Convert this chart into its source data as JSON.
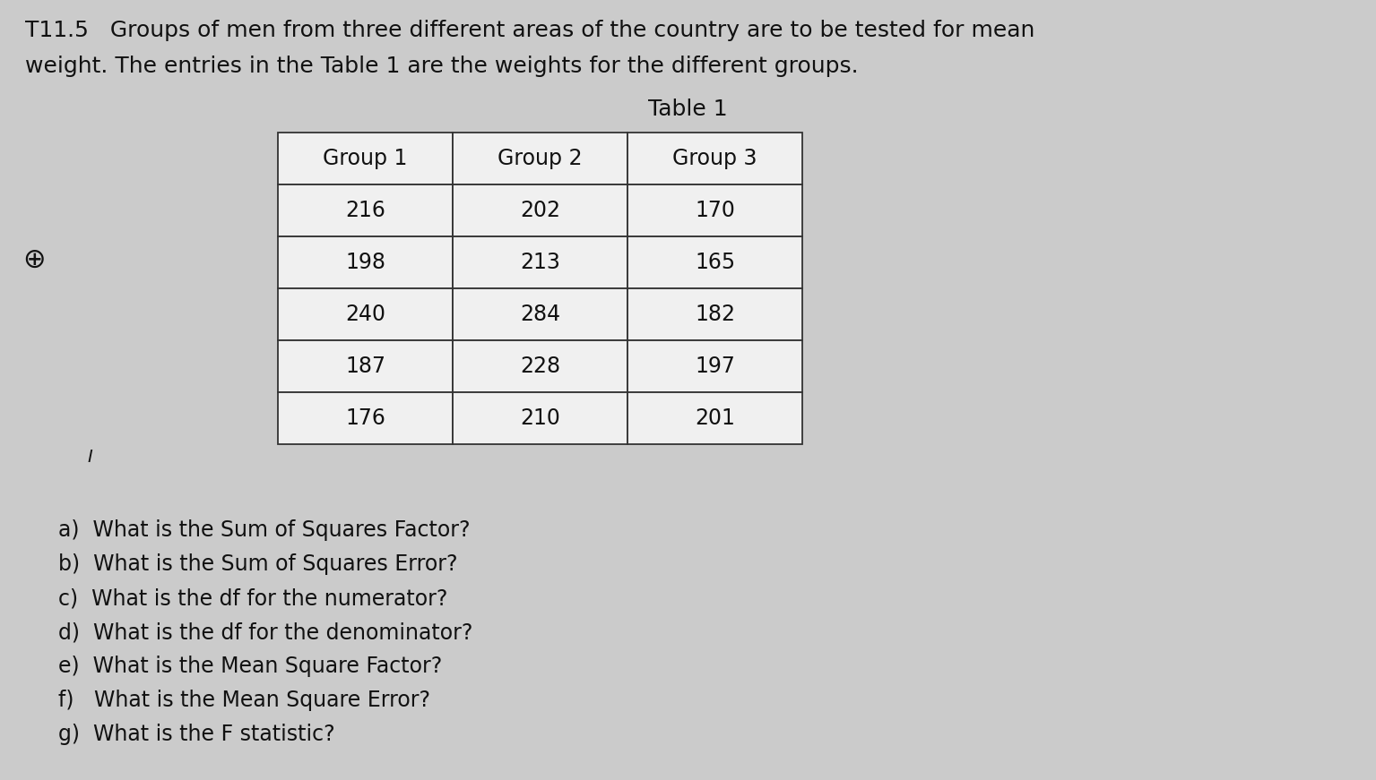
{
  "background_color": "#cbcbcb",
  "title_line1": "T11.5   Groups of men from three different areas of the country are to be tested for mean",
  "title_line2": "weight. The entries in the Table 1 are the weights for the different groups.",
  "table_title": "Table 1",
  "col_headers": [
    "Group 1",
    "Group 2",
    "Group 3"
  ],
  "table_data": [
    [
      216,
      202,
      170
    ],
    [
      198,
      213,
      165
    ],
    [
      240,
      284,
      182
    ],
    [
      187,
      228,
      197
    ],
    [
      176,
      210,
      201
    ]
  ],
  "questions": [
    "a)  What is the Sum of Squares Factor?",
    "b)  What is the Sum of Squares Error?",
    "c)  What is the df for the numerator?",
    "d)  What is the df for the denominator?",
    "e)  What is the Mean Square Factor?",
    "f)   What is the Mean Square Error?",
    "g)  What is the F statistic?"
  ],
  "title_fontsize": 18,
  "table_title_fontsize": 18,
  "table_fontsize": 17,
  "question_fontsize": 17,
  "text_color": "#111111",
  "table_bg": "#f0f0f0",
  "table_border_color": "#333333"
}
